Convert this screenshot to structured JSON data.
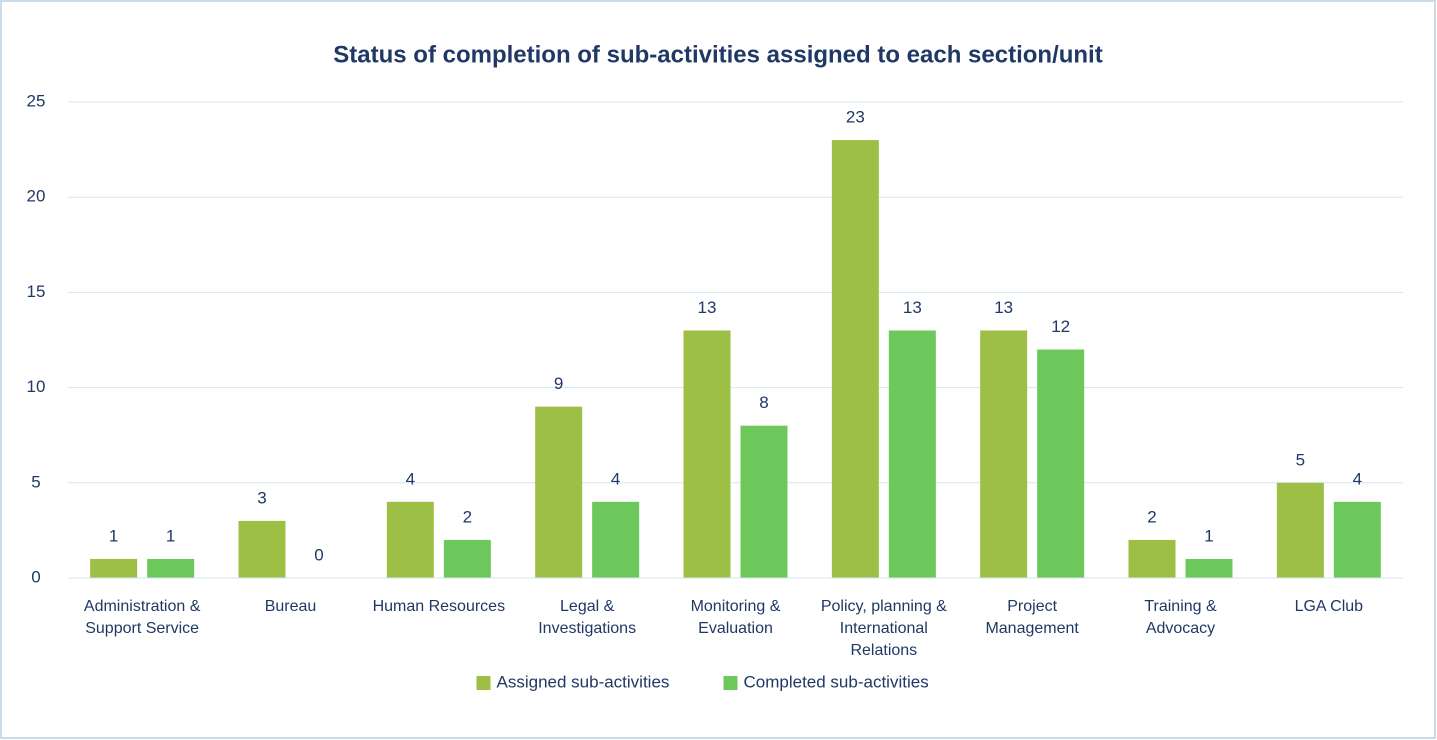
{
  "chart_data": {
    "type": "bar",
    "title": "Status of completion of sub-activities assigned to each section/unit",
    "categories": [
      "Administration & Support Service",
      "Bureau",
      "Human Resources",
      "Legal & Investigations",
      "Monitoring & Evaluation",
      "Policy, planning & International Relations",
      "Project Management",
      "Training & Advocacy",
      "LGA Club"
    ],
    "series": [
      {
        "name": "Assigned sub-activities",
        "color": "#9dbf45",
        "values": [
          1,
          3,
          4,
          9,
          13,
          23,
          13,
          2,
          5
        ]
      },
      {
        "name": "Completed sub-activities",
        "color": "#6cc85a",
        "values": [
          1,
          0,
          2,
          4,
          8,
          13,
          12,
          1,
          4
        ]
      }
    ],
    "ylim": [
      0,
      25
    ],
    "yticks": [
      0,
      5,
      10,
      15,
      20,
      25
    ],
    "grid": true,
    "legend": "bottom"
  }
}
